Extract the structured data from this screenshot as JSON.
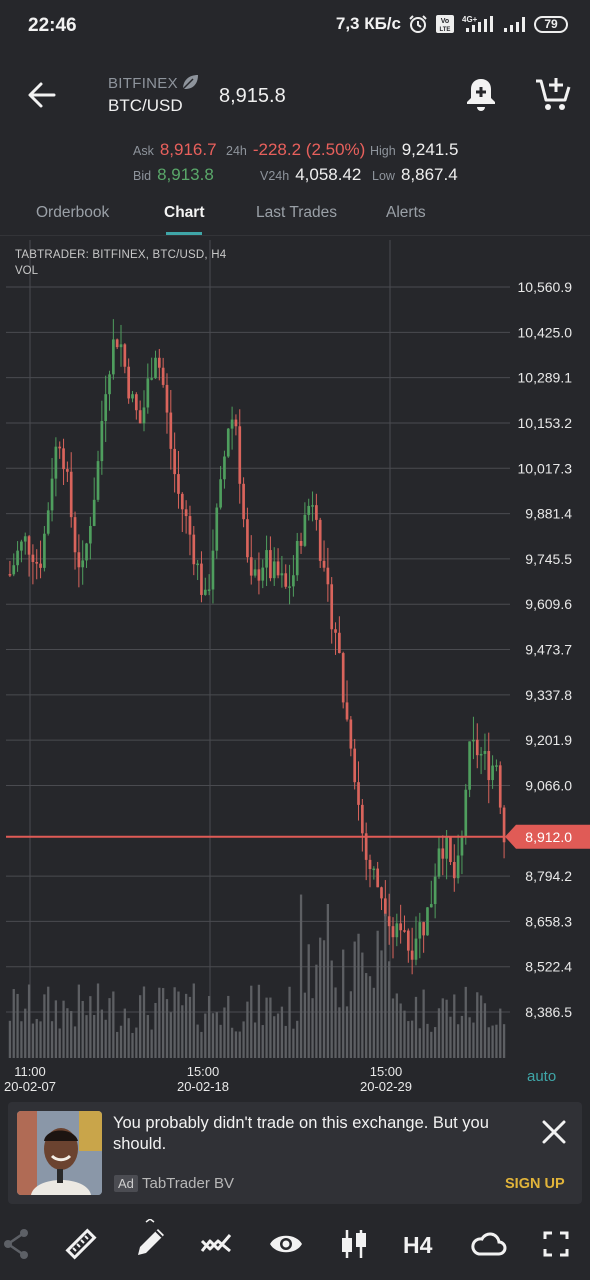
{
  "status_bar": {
    "time": "22:46",
    "net_speed": "7,3 КБ/с",
    "volte": "Vo LTE",
    "net_type": "4G+",
    "battery": "79",
    "icons": [
      "alarm-icon",
      "volte-icon",
      "signal-icon",
      "signal-icon",
      "battery-icon"
    ]
  },
  "header": {
    "exchange": "BITFINEX",
    "pair": "BTC/USD",
    "last_price": "8,915.8",
    "icons": [
      "back-arrow-icon",
      "leaf-icon",
      "add-alert-bell-icon",
      "add-to-cart-icon"
    ]
  },
  "stats": {
    "ask_label": "Ask",
    "ask": "8,916.7",
    "bid_label": "Bid",
    "bid": "8,913.8",
    "change_label": "24h",
    "change": "-228.2 (2.50%)",
    "vol_label": "V24h",
    "vol": "4,058.42",
    "high_label": "High",
    "high": "9,241.5",
    "low_label": "Low",
    "low": "8,867.4"
  },
  "tabs": [
    {
      "label": "Orderbook",
      "active": false
    },
    {
      "label": "Chart",
      "active": true
    },
    {
      "label": "Last Trades",
      "active": false
    },
    {
      "label": "Alerts",
      "active": false
    }
  ],
  "chart_data": {
    "type": "candlestick",
    "title": "TABTRADER: BITFINEX, BTC/USD, H4",
    "volume_label": "VOL",
    "timeframe": "H4",
    "y_ticks": [
      10560.9,
      10425.0,
      10289.1,
      10153.2,
      10017.3,
      9881.4,
      9745.5,
      9609.6,
      9473.7,
      9337.8,
      9201.9,
      9066.0,
      8794.2,
      8658.3,
      8522.4,
      8386.5
    ],
    "y_tick_labels": [
      "10,560.9",
      "10,425.0",
      "10,289.1",
      "10,153.2",
      "10,017.3",
      "9,881.4",
      "9,745.5",
      "9,609.6",
      "9,473.7",
      "9,337.8",
      "9,201.9",
      "9,066.0",
      "8,794.2",
      "8,658.3",
      "8,522.4",
      "8,386.5"
    ],
    "current_price": 8912.0,
    "current_price_label": "8,912.0",
    "x_ticks": [
      {
        "time": "11:00",
        "date": "20-02-07"
      },
      {
        "time": "15:00",
        "date": "20-02-18"
      },
      {
        "time": "15:00",
        "date": "20-02-29"
      }
    ],
    "close_series": [
      9700,
      9760,
      9800,
      9780,
      9720,
      9850,
      10050,
      10120,
      9950,
      9780,
      9700,
      9860,
      10000,
      10250,
      10380,
      10420,
      10300,
      10200,
      10150,
      10270,
      10380,
      10280,
      10100,
      9950,
      9880,
      9800,
      9700,
      9600,
      9800,
      9950,
      10150,
      10180,
      9900,
      9650,
      9700,
      9750,
      9700,
      9690,
      9650,
      9700,
      9820,
      9900,
      9950,
      9700,
      9600,
      9520,
      9300,
      9200,
      9000,
      8850,
      8800,
      8750,
      8700,
      8600,
      8680,
      8560,
      8640,
      8650,
      8730,
      8900,
      8880,
      8780,
      8830,
      9150,
      9180,
      9150,
      9120,
      9140,
      8910
    ],
    "auto_label": "auto"
  },
  "ad": {
    "text": "You probably didn't trade on this exchange. But you should.",
    "badge": "Ad",
    "advertiser": "TabTrader BV",
    "cta": "SIGN UP",
    "icons": [
      "close-icon"
    ]
  },
  "toolbar": {
    "timeframe": "H4",
    "icons": [
      "share-icon",
      "ruler-icon",
      "draw-pen-icon",
      "indicators-icon",
      "eye-icon",
      "candles-icon",
      "cloud-icon",
      "fullscreen-icon"
    ]
  }
}
